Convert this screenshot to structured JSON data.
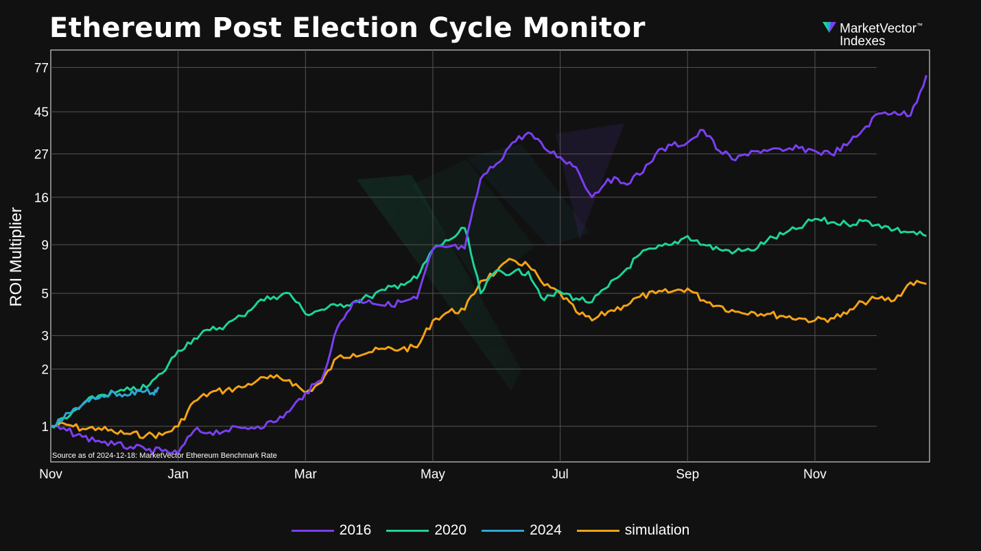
{
  "title": "Ethereum Post Election Cycle Monitor",
  "logo": {
    "line1": "MarketVector",
    "trademark": "™",
    "line2": "Indexes"
  },
  "source_note": "Source as of 2024-12-18: MarketVector Ethereum Benchmark Rate",
  "colors": {
    "2016": "#7B3FF2",
    "2020": "#1DD49A",
    "2024": "#2BA8D4",
    "simulation": "#F5A316",
    "background": "#111111",
    "grid": "#555555"
  },
  "chart_data": {
    "type": "line",
    "title": "Ethereum Post Election Cycle Monitor",
    "ylabel": "ROI Multiplier",
    "xlabel": "",
    "y_scale": "log",
    "ylim": [
      0.65,
      95
    ],
    "x_domain": [
      "Nov",
      "Jan+1"
    ],
    "x_ticks": [
      {
        "label": "Nov",
        "month": 0
      },
      {
        "label": "Jan",
        "month": 2
      },
      {
        "label": "Mar",
        "month": 4
      },
      {
        "label": "May",
        "month": 6
      },
      {
        "label": "Jul",
        "month": 8
      },
      {
        "label": "Sep",
        "month": 10
      },
      {
        "label": "Nov",
        "month": 12
      }
    ],
    "y_ticks": [
      1,
      2,
      3,
      5,
      9,
      16,
      27,
      45,
      77
    ],
    "grid": true,
    "legend_position": "bottom",
    "series": [
      {
        "name": "2016",
        "x_month": [
          0,
          0.25,
          0.5,
          0.75,
          1,
          1.25,
          1.5,
          1.75,
          2,
          2.25,
          2.5,
          2.75,
          3,
          3.25,
          3.5,
          3.75,
          4,
          4.25,
          4.5,
          4.75,
          5,
          5.25,
          5.5,
          5.75,
          6,
          6.25,
          6.5,
          6.75,
          7,
          7.25,
          7.5,
          7.75,
          8,
          8.25,
          8.5,
          8.75,
          9,
          9.25,
          9.5,
          9.75,
          10,
          10.25,
          10.5,
          10.75,
          11,
          11.25,
          11.5,
          11.75,
          12,
          12.25,
          12.5,
          12.75,
          13,
          13.25,
          13.5,
          13.75
        ],
        "values": [
          1,
          0.95,
          0.88,
          0.84,
          0.8,
          0.78,
          0.75,
          0.74,
          0.72,
          0.95,
          0.93,
          0.95,
          0.98,
          1.0,
          1.05,
          1.2,
          1.5,
          1.75,
          3.3,
          4.5,
          4.6,
          4.3,
          4.5,
          4.7,
          8.5,
          8.8,
          8.6,
          20,
          24,
          31,
          35,
          29,
          26,
          23,
          16,
          20,
          19,
          21,
          27,
          30,
          31,
          36,
          28,
          25,
          28,
          28,
          28,
          29,
          28,
          27,
          30,
          36,
          44,
          45,
          43,
          70
        ]
      },
      {
        "name": "2020",
        "x_month": [
          0,
          0.25,
          0.5,
          0.75,
          1,
          1.25,
          1.5,
          1.75,
          2,
          2.25,
          2.5,
          2.75,
          3,
          3.25,
          3.5,
          3.75,
          4,
          4.25,
          4.5,
          4.75,
          5,
          5.25,
          5.5,
          5.75,
          6,
          6.25,
          6.5,
          6.75,
          7,
          7.25,
          7.5,
          7.75,
          8,
          8.25,
          8.5,
          8.75,
          9,
          9.25,
          9.5,
          9.75,
          10,
          10.25,
          10.5,
          10.75,
          11,
          11.25,
          11.5,
          11.75,
          12,
          12.25,
          12.5,
          12.75,
          13,
          13.25,
          13.5,
          13.75
        ],
        "values": [
          1,
          1.1,
          1.3,
          1.45,
          1.5,
          1.55,
          1.6,
          1.9,
          2.5,
          2.9,
          3.2,
          3.4,
          3.8,
          4.5,
          4.8,
          5,
          3.9,
          4.1,
          4.3,
          4.5,
          4.8,
          5.2,
          5.6,
          6,
          8.5,
          9.5,
          11,
          5,
          6.6,
          6.4,
          6.5,
          4.6,
          5.1,
          4.7,
          4.5,
          5.4,
          6.5,
          8,
          8.6,
          9,
          10,
          9,
          8.5,
          8.3,
          8.4,
          9.5,
          10.2,
          11,
          12.3,
          11.8,
          11.6,
          12,
          11.5,
          10.8,
          10.5,
          10
        ]
      },
      {
        "name": "2024",
        "x_month": [
          0,
          0.2,
          0.4,
          0.6,
          0.8,
          1.0,
          1.2,
          1.4,
          1.6,
          1.7
        ],
        "values": [
          1,
          1.1,
          1.25,
          1.35,
          1.45,
          1.5,
          1.45,
          1.55,
          1.5,
          1.6
        ]
      },
      {
        "name": "simulation",
        "x_month": [
          0,
          0.25,
          0.5,
          0.75,
          1,
          1.25,
          1.5,
          1.75,
          2,
          2.25,
          2.5,
          2.75,
          3,
          3.25,
          3.5,
          3.75,
          4,
          4.25,
          4.5,
          4.75,
          5,
          5.25,
          5.5,
          5.75,
          6,
          6.25,
          6.5,
          6.75,
          7,
          7.25,
          7.5,
          7.75,
          8,
          8.25,
          8.5,
          8.75,
          9,
          9.25,
          9.5,
          9.75,
          10,
          10.25,
          10.5,
          10.75,
          11,
          11.25,
          11.5,
          11.75,
          12,
          12.25,
          12.5,
          12.75,
          13,
          13.25,
          13.5,
          13.75
        ],
        "values": [
          1,
          1.02,
          0.97,
          0.98,
          0.93,
          0.91,
          0.9,
          0.9,
          1.0,
          1.35,
          1.5,
          1.55,
          1.6,
          1.75,
          1.8,
          1.75,
          1.5,
          1.7,
          2.3,
          2.4,
          2.45,
          2.55,
          2.55,
          2.6,
          3.6,
          4.0,
          4.1,
          5.8,
          6.5,
          7.5,
          7,
          5.5,
          5.0,
          4.0,
          3.6,
          4.0,
          4.3,
          4.8,
          5.0,
          5.1,
          5.3,
          4.6,
          4.3,
          4.0,
          4.0,
          3.9,
          3.8,
          3.7,
          3.6,
          3.7,
          3.9,
          4.5,
          4.7,
          4.6,
          5.7,
          5.6
        ]
      }
    ]
  }
}
